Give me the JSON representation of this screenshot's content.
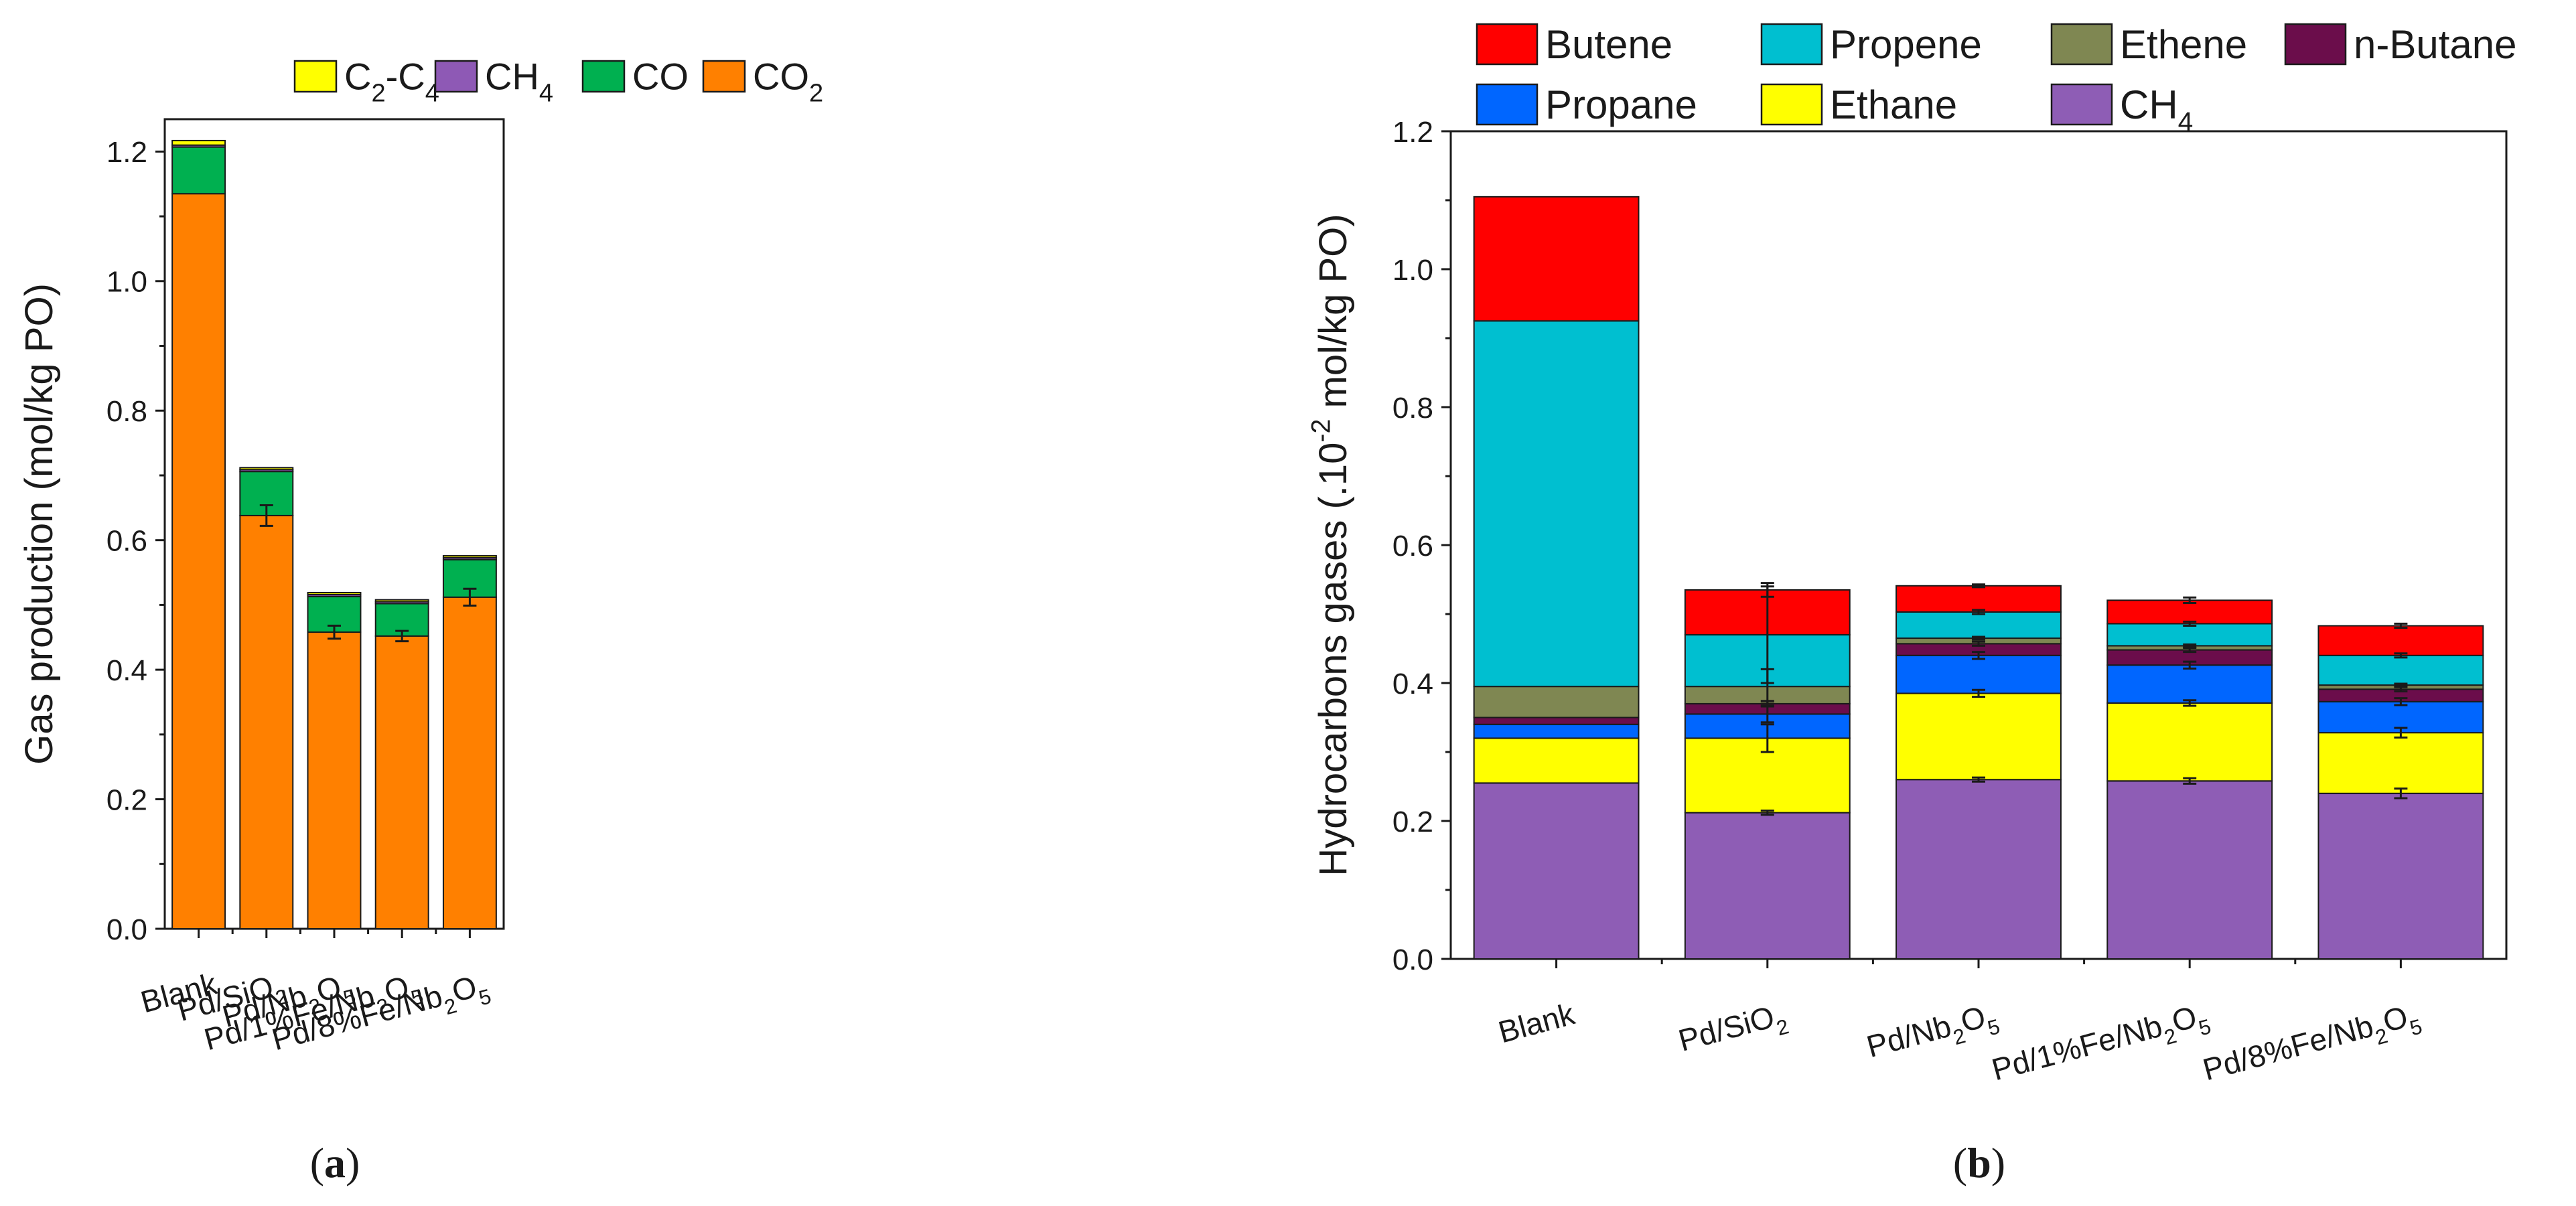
{
  "chart_data": [
    {
      "type": "bar",
      "stacked": true,
      "panel_label": {
        "open": "(",
        "letter": "a",
        "close": ")"
      },
      "ylabel": "Gas production (mol/kg PO)",
      "xlabel": "",
      "ylim": [
        0,
        1.25
      ],
      "yticks": [
        0.0,
        0.2,
        0.4,
        0.6,
        0.8,
        1.0,
        1.2
      ],
      "ytick_labels": [
        "0.0",
        "0.2",
        "0.4",
        "0.6",
        "0.8",
        "1.0",
        "1.2"
      ],
      "categories": [
        {
          "id": "blank",
          "parts": [
            {
              "t": "Blank"
            }
          ]
        },
        {
          "id": "pd-sio2",
          "parts": [
            {
              "t": "Pd/SiO"
            },
            {
              "t": "2",
              "sub": true
            }
          ]
        },
        {
          "id": "pd-nb2o5",
          "parts": [
            {
              "t": "Pd/Nb"
            },
            {
              "t": "2",
              "sub": true
            },
            {
              "t": "O"
            },
            {
              "t": "5",
              "sub": true
            }
          ]
        },
        {
          "id": "pd-1fe-nb2o5",
          "parts": [
            {
              "t": "Pd/1%Fe/Nb"
            },
            {
              "t": "2",
              "sub": true
            },
            {
              "t": "O"
            },
            {
              "t": "5",
              "sub": true
            }
          ]
        },
        {
          "id": "pd-8fe-nb2o5",
          "parts": [
            {
              "t": "Pd/8%Fe/Nb"
            },
            {
              "t": "2",
              "sub": true
            },
            {
              "t": "O"
            },
            {
              "t": "5",
              "sub": true
            }
          ]
        }
      ],
      "series": [
        {
          "id": "co2",
          "label_parts": [
            {
              "t": "CO"
            },
            {
              "t": "2",
              "sub": true
            }
          ],
          "color": "#FF8000",
          "values": [
            1.135,
            0.638,
            0.458,
            0.452,
            0.512
          ],
          "errors": [
            0,
            0.016,
            0.01,
            0.008,
            0.013
          ]
        },
        {
          "id": "co",
          "label_parts": [
            {
              "t": "CO"
            }
          ],
          "color": "#00B050",
          "values": [
            0.072,
            0.068,
            0.055,
            0.05,
            0.058
          ],
          "errors": [
            0,
            0,
            0,
            0,
            0
          ]
        },
        {
          "id": "ch4",
          "label_parts": [
            {
              "t": "CH"
            },
            {
              "t": "4",
              "sub": true
            }
          ],
          "color": "#8E59B5",
          "values": [
            0.003,
            0.003,
            0.003,
            0.003,
            0.003
          ],
          "errors": [
            0,
            0,
            0,
            0,
            0
          ]
        },
        {
          "id": "c2c4",
          "label_parts": [
            {
              "t": "C"
            },
            {
              "t": "2",
              "sub": true
            },
            {
              "t": "-C"
            },
            {
              "t": "4",
              "sub": true
            }
          ],
          "color": "#FFFF00",
          "values": [
            0.007,
            0.003,
            0.003,
            0.003,
            0.003
          ],
          "errors": [
            0,
            0,
            0,
            0,
            0
          ]
        }
      ],
      "legend_order": [
        "c2c4",
        "ch4",
        "co",
        "co2"
      ],
      "legend_position": "top"
    },
    {
      "type": "bar",
      "stacked": true,
      "panel_label": {
        "open": "(",
        "letter": "b",
        "close": ")"
      },
      "ylabel_parts": [
        {
          "t": "Hydrocarbons gases (.10"
        },
        {
          "t": "-2",
          "sup": true
        },
        {
          "t": " mol/kg PO)"
        }
      ],
      "xlabel": "",
      "ylim": [
        0,
        1.2
      ],
      "yticks": [
        0.0,
        0.2,
        0.4,
        0.6,
        0.8,
        1.0,
        1.2
      ],
      "ytick_labels": [
        "0.0",
        "0.2",
        "0.4",
        "0.6",
        "0.8",
        "1.0",
        "1.2"
      ],
      "categories": [
        {
          "id": "blank",
          "parts": [
            {
              "t": "Blank"
            }
          ]
        },
        {
          "id": "pd-sio2",
          "parts": [
            {
              "t": "Pd/SiO"
            },
            {
              "t": "2",
              "sub": true
            }
          ]
        },
        {
          "id": "pd-nb2o5",
          "parts": [
            {
              "t": "Pd/Nb"
            },
            {
              "t": "2",
              "sub": true
            },
            {
              "t": "O"
            },
            {
              "t": "5",
              "sub": true
            }
          ]
        },
        {
          "id": "pd-1fe-nb2o5",
          "parts": [
            {
              "t": "Pd/1%Fe/Nb"
            },
            {
              "t": "2",
              "sub": true
            },
            {
              "t": "O"
            },
            {
              "t": "5",
              "sub": true
            }
          ]
        },
        {
          "id": "pd-8fe-nb2o5",
          "parts": [
            {
              "t": "Pd/8%Fe/Nb"
            },
            {
              "t": "2",
              "sub": true
            },
            {
              "t": "O"
            },
            {
              "t": "5",
              "sub": true
            }
          ]
        }
      ],
      "series": [
        {
          "id": "ch4",
          "label_parts": [
            {
              "t": "CH"
            },
            {
              "t": "4",
              "sub": true
            }
          ],
          "color": "#8E5DB5",
          "values": [
            0.255,
            0.212,
            0.26,
            0.258,
            0.24
          ],
          "errors": [
            0,
            0.003,
            0.003,
            0.004,
            0.007
          ]
        },
        {
          "id": "ethane",
          "label_parts": [
            {
              "t": "Ethane"
            }
          ],
          "color": "#FFFF00",
          "values": [
            0.065,
            0.108,
            0.125,
            0.113,
            0.088
          ],
          "errors": [
            0,
            0.02,
            0.005,
            0.004,
            0.007
          ]
        },
        {
          "id": "propane",
          "label_parts": [
            {
              "t": "Propane"
            }
          ],
          "color": "#0066FF",
          "values": [
            0.02,
            0.035,
            0.055,
            0.055,
            0.045
          ],
          "errors": [
            0,
            0.012,
            0.005,
            0.005,
            0.005
          ]
        },
        {
          "id": "n-butane",
          "label_parts": [
            {
              "t": "n-Butane"
            }
          ],
          "color": "#6B0D4B",
          "values": [
            0.01,
            0.015,
            0.017,
            0.022,
            0.018
          ],
          "errors": [
            0,
            0.004,
            0.003,
            0.003,
            0.003
          ]
        },
        {
          "id": "ethene",
          "label_parts": [
            {
              "t": "Ethene"
            }
          ],
          "color": "#7F8752",
          "values": [
            0.045,
            0.025,
            0.008,
            0.006,
            0.006
          ],
          "errors": [
            0,
            0.025,
            0.002,
            0.002,
            0.002
          ]
        },
        {
          "id": "propene",
          "label_parts": [
            {
              "t": "Propene"
            }
          ],
          "color": "#00BFD0",
          "values": [
            0.53,
            0.075,
            0.038,
            0.032,
            0.043
          ],
          "errors": [
            0,
            0.07,
            0.003,
            0.003,
            0.003
          ]
        },
        {
          "id": "butene",
          "label_parts": [
            {
              "t": "Butene"
            }
          ],
          "color": "#FF0000",
          "values": [
            0.18,
            0.065,
            0.038,
            0.034,
            0.043
          ],
          "errors": [
            0,
            0.01,
            0.002,
            0.004,
            0.003
          ]
        }
      ],
      "legend_order": [
        "butene",
        "propene",
        "ethene",
        "n-butane",
        "propane",
        "ethane",
        "ch4"
      ],
      "legend_position": "top"
    }
  ]
}
